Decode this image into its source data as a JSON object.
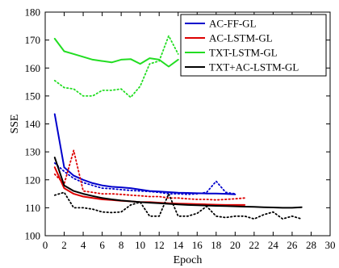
{
  "chart_data": {
    "type": "line",
    "title": "",
    "xlabel": "Epoch",
    "ylabel": "SSE",
    "xlim": [
      0,
      30
    ],
    "ylim": [
      100,
      180
    ],
    "xticks": [
      0,
      2,
      4,
      6,
      8,
      10,
      12,
      14,
      16,
      18,
      20,
      22,
      24,
      26,
      28,
      30
    ],
    "yticks": [
      100,
      110,
      120,
      130,
      140,
      150,
      160,
      170,
      180
    ],
    "grid": false,
    "legend_position": "top-right",
    "legend": [
      "AC-FF-GL",
      "AC-LSTM-GL",
      "TXT-LSTM-GL",
      "TXT+AC-LSTM-GL"
    ],
    "series": [
      {
        "name": "AC-FF-GL",
        "color": "#0000cc",
        "style": "solid",
        "x": [
          1,
          2,
          3,
          4,
          5,
          6,
          7,
          8,
          9,
          10,
          11,
          12,
          13,
          14,
          15,
          16,
          17,
          18,
          19,
          20
        ],
        "y": [
          143.5,
          124.5,
          121.5,
          120,
          118.8,
          118,
          117.5,
          117.3,
          117,
          116.5,
          116,
          115.8,
          115.6,
          115.4,
          115.3,
          115.2,
          115.1,
          115.1,
          115,
          114.8
        ]
      },
      {
        "name": "AC-FF-GL (dotted)",
        "color": "#0000cc",
        "style": "dotted",
        "x": [
          1,
          2,
          3,
          4,
          5,
          6,
          7,
          8,
          9,
          10,
          11,
          12,
          13,
          14,
          15,
          16,
          17,
          18,
          19,
          20
        ],
        "y": [
          126,
          123,
          120.5,
          119,
          118,
          117,
          116.8,
          116.5,
          116.2,
          116,
          115.8,
          115.5,
          115,
          115,
          114.8,
          115,
          115.5,
          119.5,
          115.5,
          115
        ]
      },
      {
        "name": "AC-LSTM-GL",
        "color": "#dd0000",
        "style": "solid",
        "x": [
          1,
          2,
          3,
          4,
          5,
          6,
          7,
          8,
          9,
          10,
          11,
          12,
          13,
          14,
          15,
          16,
          17,
          18,
          19,
          20,
          21
        ],
        "y": [
          124.5,
          117,
          115,
          114,
          113.5,
          113,
          112.8,
          112.5,
          112.3,
          112,
          112,
          111.8,
          111.6,
          111.5,
          111.4,
          111.3,
          111.2,
          111.1,
          111,
          111,
          111
        ]
      },
      {
        "name": "AC-LSTM-GL (dotted)",
        "color": "#dd0000",
        "style": "dotted",
        "x": [
          1,
          2,
          3,
          4,
          5,
          6,
          7,
          8,
          9,
          10,
          11,
          12,
          13,
          14,
          15,
          16,
          17,
          18,
          19,
          20,
          21
        ],
        "y": [
          122,
          118.5,
          130.5,
          116,
          115.5,
          115,
          115,
          114.8,
          114.5,
          114.3,
          114,
          114,
          113.5,
          113.5,
          113.2,
          113,
          113,
          112.8,
          113,
          113.2,
          113.5
        ]
      },
      {
        "name": "TXT-LSTM-GL",
        "color": "#22dd22",
        "style": "solid",
        "x": [
          1,
          2,
          3,
          4,
          5,
          6,
          7,
          8,
          9,
          10,
          11,
          12,
          13,
          14
        ],
        "y": [
          170.5,
          166,
          165,
          164,
          163,
          162.5,
          162,
          163,
          163.2,
          161.5,
          163.5,
          163,
          160.5,
          163
        ]
      },
      {
        "name": "TXT-LSTM-GL (dotted)",
        "color": "#22dd22",
        "style": "dotted",
        "x": [
          1,
          2,
          3,
          4,
          5,
          6,
          7,
          8,
          9,
          10,
          11,
          12,
          13,
          14
        ],
        "y": [
          155.5,
          153,
          152.5,
          150,
          150,
          152,
          152,
          152.5,
          149.5,
          153.5,
          161.5,
          162.5,
          171.5,
          165
        ]
      },
      {
        "name": "TXT+AC-LSTM-GL",
        "color": "#000000",
        "style": "solid",
        "x": [
          1,
          2,
          3,
          4,
          5,
          6,
          7,
          8,
          9,
          10,
          11,
          12,
          13,
          14,
          15,
          16,
          17,
          18,
          19,
          20,
          21,
          22,
          23,
          24,
          25,
          26,
          27
        ],
        "y": [
          128,
          118,
          116,
          115,
          114.2,
          113.5,
          113,
          112.6,
          112.3,
          112,
          111.8,
          111.6,
          111.4,
          111.2,
          111,
          110.9,
          110.8,
          110.7,
          110.6,
          110.5,
          110.4,
          110.3,
          110.2,
          110.1,
          110,
          110,
          110.2
        ]
      },
      {
        "name": "TXT+AC-LSTM-GL (dotted)",
        "color": "#000000",
        "style": "dotted",
        "x": [
          1,
          2,
          3,
          4,
          5,
          6,
          7,
          8,
          9,
          10,
          11,
          12,
          13,
          14,
          15,
          16,
          17,
          18,
          19,
          20,
          21,
          22,
          23,
          24,
          25,
          26,
          27
        ],
        "y": [
          114.5,
          115.5,
          110,
          110,
          109.5,
          108.5,
          108.3,
          108.5,
          111,
          112,
          107,
          107,
          115,
          107,
          107,
          108,
          110.5,
          107,
          106.5,
          107,
          107,
          106,
          107.5,
          108.5,
          106,
          107,
          106
        ]
      }
    ]
  }
}
